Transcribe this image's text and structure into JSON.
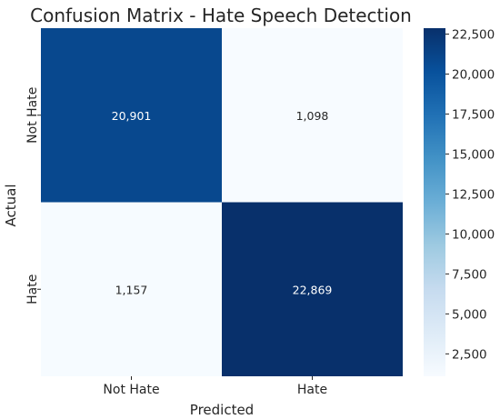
{
  "chart_data": {
    "type": "heatmap",
    "title": "Confusion Matrix - Hate Speech Detection",
    "xlabel": "Predicted",
    "ylabel": "Actual",
    "x_categories": [
      "Not Hate",
      "Hate"
    ],
    "y_categories": [
      "Not Hate",
      "Hate"
    ],
    "values": [
      [
        20901,
        1098
      ],
      [
        1157,
        22869
      ]
    ],
    "value_labels": [
      [
        "20,901",
        "1,098"
      ],
      [
        "1,157",
        "22,869"
      ]
    ],
    "colormap": "Blues",
    "color_range": [
      1098,
      22869
    ],
    "colorbar_ticks": [
      2500,
      5000,
      7500,
      10000,
      12500,
      15000,
      17500,
      20000,
      22500
    ],
    "colorbar_tick_labels": [
      "2,500",
      "5,000",
      "7,500",
      "10,000",
      "12,500",
      "15,000",
      "17,500",
      "20,000",
      "22,500"
    ]
  }
}
